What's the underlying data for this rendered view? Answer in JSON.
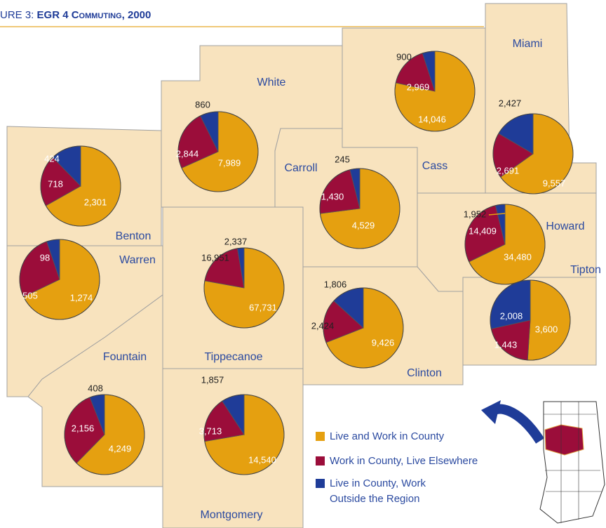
{
  "title_prefix": "URE 3:",
  "title": "EGR 4 Commuting, 2000",
  "legend": [
    {
      "label": "Live and Work in County",
      "color": "#e5a010"
    },
    {
      "label": "Work in County, Live Elsewhere",
      "color": "#9b0d3a"
    },
    {
      "label": "Live in County, Work",
      "label2": "Outside the Region",
      "color": "#1f3c98"
    }
  ],
  "counties": [
    {
      "name": "Benton",
      "values": [
        2301,
        718,
        424
      ],
      "value_labels": [
        "2,301",
        "718",
        "424"
      ]
    },
    {
      "name": "White",
      "values": [
        7989,
        2844,
        860
      ],
      "value_labels": [
        "7,989",
        "2,844",
        "860"
      ]
    },
    {
      "name": "Cass",
      "values": [
        14046,
        2969,
        900
      ],
      "value_labels": [
        "14,046",
        "2,969",
        "900"
      ]
    },
    {
      "name": "Miami",
      "values": [
        9557,
        2691,
        2427
      ],
      "value_labels": [
        "9,557",
        "2,691",
        "2,427"
      ]
    },
    {
      "name": "Carroll",
      "values": [
        4529,
        1430,
        245
      ],
      "value_labels": [
        "4,529",
        "1,430",
        "245"
      ]
    },
    {
      "name": "Howard",
      "values": [
        34480,
        14409,
        1952
      ],
      "value_labels": [
        "34,480",
        "14,409",
        "1,952"
      ]
    },
    {
      "name": "Warren",
      "values": [
        1274,
        505,
        98
      ],
      "value_labels": [
        "1,274",
        "505",
        "98"
      ]
    },
    {
      "name": "Tippecanoe",
      "values": [
        67731,
        16951,
        2337
      ],
      "value_labels": [
        "67,731",
        "16,951",
        "2,337"
      ]
    },
    {
      "name": "Clinton",
      "values": [
        9426,
        2424,
        1806
      ],
      "value_labels": [
        "9,426",
        "2,424",
        "1,806"
      ]
    },
    {
      "name": "Tipton",
      "values": [
        3600,
        1443,
        2008
      ],
      "value_labels": [
        "3,600",
        "1,443",
        "2,008"
      ]
    },
    {
      "name": "Fountain",
      "values": [
        4249,
        2156,
        408
      ],
      "value_labels": [
        "4,249",
        "2,156",
        "408"
      ]
    },
    {
      "name": "Montgomery",
      "values": [
        14540,
        3713,
        1857
      ],
      "value_labels": [
        "14,540",
        "3,713",
        "1,857"
      ]
    }
  ]
}
